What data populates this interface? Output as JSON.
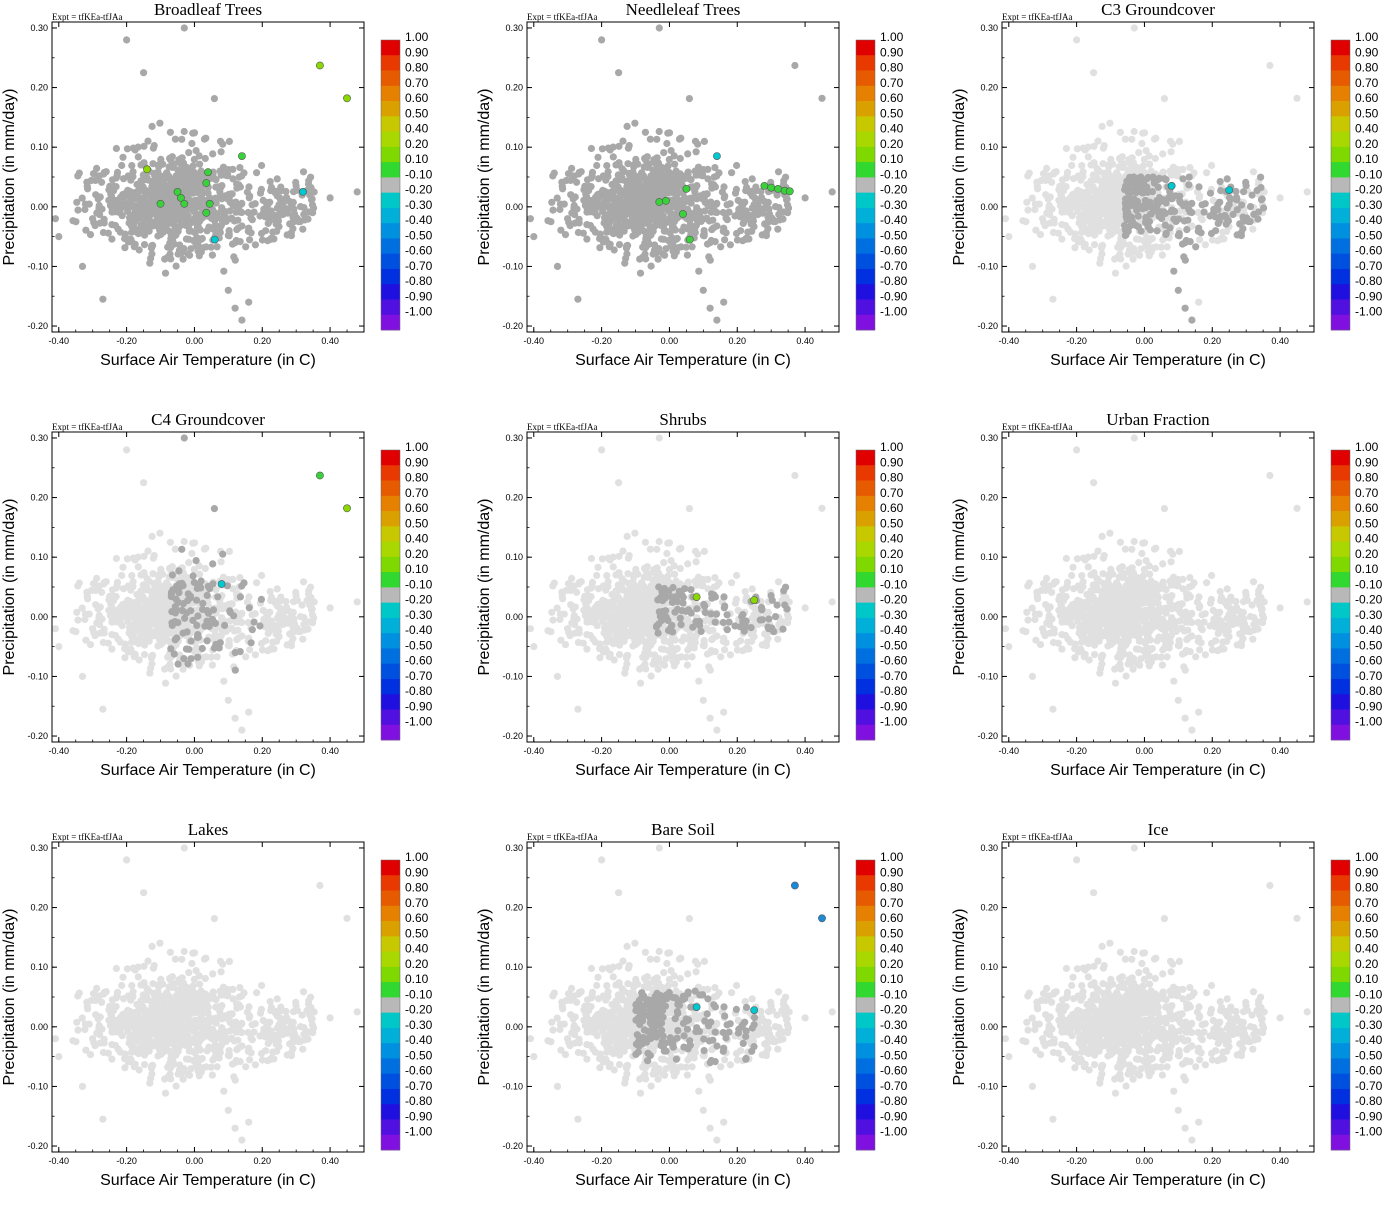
{
  "chart_data": {
    "type": "scatter",
    "expt_label": "Expt = tfKEa-tfJAa",
    "xlabel": "Surface Air Temperature (in C)",
    "ylabel": "Precipitation (in mm/day)",
    "xlim": [
      -0.42,
      0.5
    ],
    "ylim": [
      -0.21,
      0.31
    ],
    "x_ticks": [
      "-0.40",
      "-0.20",
      "0.00",
      "0.20",
      "0.40"
    ],
    "x_tick_values": [
      -0.4,
      -0.2,
      0.0,
      0.2,
      0.4
    ],
    "y_ticks": [
      "0.30",
      "0.20",
      "0.10",
      "0.00",
      "-0.10",
      "-0.20"
    ],
    "y_tick_values": [
      0.3,
      0.2,
      0.1,
      0.0,
      -0.1,
      -0.2
    ],
    "colorbar": {
      "labels": [
        "1.00",
        "0.90",
        "0.80",
        "0.70",
        "0.60",
        "0.50",
        "0.40",
        "0.20",
        "0.10",
        "-0.10",
        "-0.20",
        "-0.30",
        "-0.40",
        "-0.50",
        "-0.60",
        "-0.70",
        "-0.80",
        "-0.90",
        "-1.00"
      ],
      "colors": [
        "#e00000",
        "#e83a00",
        "#e65a00",
        "#e68000",
        "#d9a000",
        "#c8c800",
        "#a8d800",
        "#7fd800",
        "#30d830",
        "#b8b8b8",
        "#00c8c8",
        "#00b0d8",
        "#0090e0",
        "#0070e0",
        "#0050e0",
        "#0030e0",
        "#2010e0",
        "#5010e0",
        "#8010e0"
      ]
    },
    "colors": {
      "background_point": "#e0e0e0",
      "neutral_point": "#a8a8a8",
      "green": "#3ad23a",
      "lime": "#8ad800",
      "cyan": "#00c8d0",
      "blue": "#1a8ad8"
    },
    "panels": [
      {
        "title": "Broadleaf Trees",
        "highlight_points": [
          {
            "x": 0.37,
            "y": 0.237,
            "color": "lime"
          },
          {
            "x": 0.45,
            "y": 0.182,
            "color": "lime"
          },
          {
            "x": -0.14,
            "y": 0.063,
            "color": "lime"
          },
          {
            "x": 0.14,
            "y": 0.085,
            "color": "green"
          },
          {
            "x": 0.04,
            "y": 0.058,
            "color": "green"
          },
          {
            "x": 0.035,
            "y": 0.04,
            "color": "green"
          },
          {
            "x": -0.05,
            "y": 0.025,
            "color": "green"
          },
          {
            "x": -0.04,
            "y": 0.015,
            "color": "green"
          },
          {
            "x": -0.03,
            "y": 0.005,
            "color": "green"
          },
          {
            "x": -0.1,
            "y": 0.005,
            "color": "green"
          },
          {
            "x": 0.045,
            "y": 0.005,
            "color": "green"
          },
          {
            "x": 0.035,
            "y": -0.01,
            "color": "green"
          },
          {
            "x": 0.06,
            "y": -0.055,
            "color": "cyan"
          },
          {
            "x": 0.32,
            "y": 0.025,
            "color": "cyan"
          }
        ]
      },
      {
        "title": "Needleleaf Trees",
        "highlight_points": [
          {
            "x": 0.14,
            "y": 0.085,
            "color": "cyan"
          },
          {
            "x": 0.28,
            "y": 0.035,
            "color": "green"
          },
          {
            "x": 0.3,
            "y": 0.032,
            "color": "green"
          },
          {
            "x": 0.32,
            "y": 0.03,
            "color": "green"
          },
          {
            "x": 0.34,
            "y": 0.027,
            "color": "green"
          },
          {
            "x": 0.355,
            "y": 0.026,
            "color": "green"
          },
          {
            "x": 0.05,
            "y": 0.03,
            "color": "green"
          },
          {
            "x": -0.03,
            "y": 0.008,
            "color": "green"
          },
          {
            "x": -0.01,
            "y": 0.01,
            "color": "green"
          },
          {
            "x": 0.04,
            "y": -0.012,
            "color": "green"
          },
          {
            "x": 0.06,
            "y": -0.055,
            "color": "green"
          }
        ]
      },
      {
        "title": "C3 Groundcover",
        "highlight_points": [
          {
            "x": 0.08,
            "y": 0.035,
            "color": "cyan"
          },
          {
            "x": 0.25,
            "y": 0.028,
            "color": "cyan"
          }
        ]
      },
      {
        "title": "C4 Groundcover",
        "highlight_points": [
          {
            "x": 0.37,
            "y": 0.237,
            "color": "green"
          },
          {
            "x": 0.45,
            "y": 0.182,
            "color": "lime"
          },
          {
            "x": 0.08,
            "y": 0.055,
            "color": "cyan"
          }
        ]
      },
      {
        "title": "Shrubs",
        "highlight_points": [
          {
            "x": 0.08,
            "y": 0.033,
            "color": "lime"
          },
          {
            "x": 0.25,
            "y": 0.028,
            "color": "lime"
          }
        ]
      },
      {
        "title": "Urban Fraction",
        "highlight_points": []
      },
      {
        "title": "Lakes",
        "highlight_points": []
      },
      {
        "title": "Bare Soil",
        "highlight_points": [
          {
            "x": 0.37,
            "y": 0.237,
            "color": "blue"
          },
          {
            "x": 0.45,
            "y": 0.182,
            "color": "blue"
          },
          {
            "x": 0.08,
            "y": 0.033,
            "color": "cyan"
          },
          {
            "x": 0.25,
            "y": 0.028,
            "color": "cyan"
          }
        ]
      },
      {
        "title": "Ice",
        "highlight_points": []
      }
    ]
  }
}
